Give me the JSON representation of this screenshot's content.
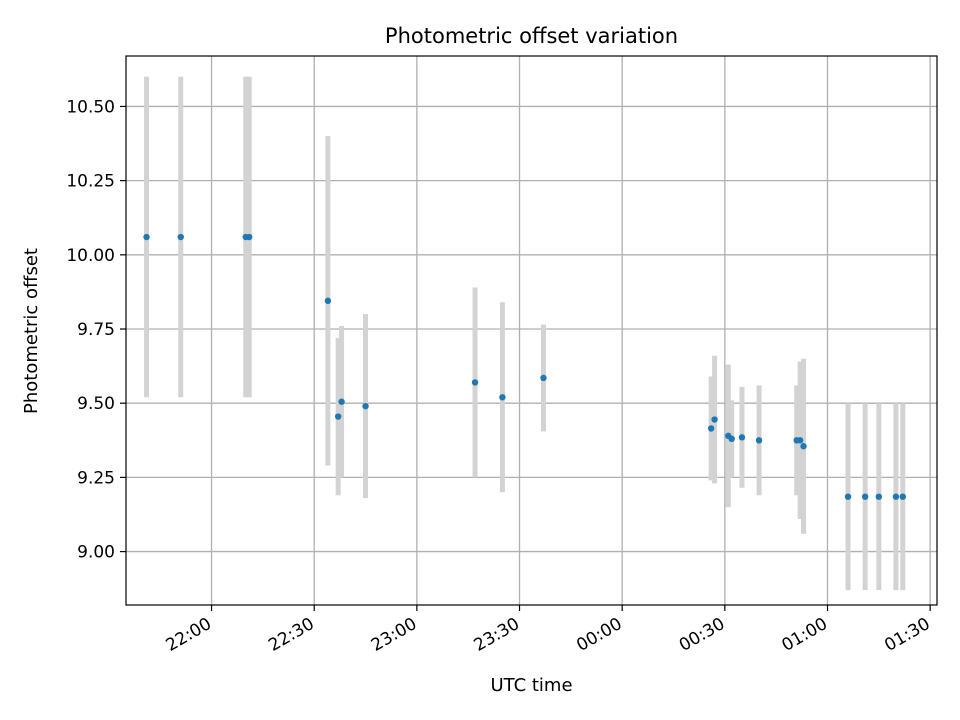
{
  "chart_data": {
    "type": "scatter",
    "title": "Photometric offset variation",
    "xlabel": "UTC time",
    "ylabel": "Photometric offset",
    "grid": true,
    "xlim": [
      "21:35",
      "01:32"
    ],
    "ylim": [
      8.82,
      10.67
    ],
    "x_ticks": [
      "22:00",
      "22:30",
      "23:00",
      "23:30",
      "00:00",
      "00:30",
      "01:00",
      "01:30"
    ],
    "y_ticks": [
      "9.00",
      "9.25",
      "9.50",
      "9.75",
      "10.00",
      "10.25",
      "10.50"
    ],
    "colors": {
      "point": "#1f77b4",
      "errorbar": "#d3d3d3",
      "grid": "#b0b0b0"
    },
    "points": [
      {
        "x": "21:41",
        "y": 10.06,
        "err": 0.54
      },
      {
        "x": "21:51",
        "y": 10.06,
        "err": 0.54
      },
      {
        "x": "22:10",
        "y": 10.06,
        "err": 0.54
      },
      {
        "x": "22:11",
        "y": 10.06,
        "err": 0.54
      },
      {
        "x": "22:34",
        "y": 9.845,
        "err": 0.555
      },
      {
        "x": "22:37",
        "y": 9.455,
        "err": 0.265
      },
      {
        "x": "22:38",
        "y": 9.505,
        "err": 0.255
      },
      {
        "x": "22:45",
        "y": 9.49,
        "err": 0.31
      },
      {
        "x": "23:17",
        "y": 9.57,
        "err": 0.32
      },
      {
        "x": "23:25",
        "y": 9.52,
        "err": 0.32
      },
      {
        "x": "23:37",
        "y": 9.585,
        "err": 0.18
      },
      {
        "x": "00:26",
        "y": 9.415,
        "err": 0.175
      },
      {
        "x": "00:27",
        "y": 9.445,
        "err": 0.215
      },
      {
        "x": "00:31",
        "y": 9.39,
        "err": 0.24
      },
      {
        "x": "00:32",
        "y": 9.38,
        "err": 0.13
      },
      {
        "x": "00:35",
        "y": 9.385,
        "err": 0.17
      },
      {
        "x": "00:40",
        "y": 9.375,
        "err": 0.185
      },
      {
        "x": "00:51",
        "y": 9.375,
        "err": 0.185
      },
      {
        "x": "00:52",
        "y": 9.375,
        "err": 0.265
      },
      {
        "x": "00:53",
        "y": 9.355,
        "err": 0.295
      },
      {
        "x": "01:06",
        "y": 9.185,
        "err": 0.315
      },
      {
        "x": "01:11",
        "y": 9.185,
        "err": 0.315
      },
      {
        "x": "01:15",
        "y": 9.185,
        "err": 0.315
      },
      {
        "x": "01:20",
        "y": 9.185,
        "err": 0.315
      },
      {
        "x": "01:22",
        "y": 9.185,
        "err": 0.315
      }
    ]
  }
}
